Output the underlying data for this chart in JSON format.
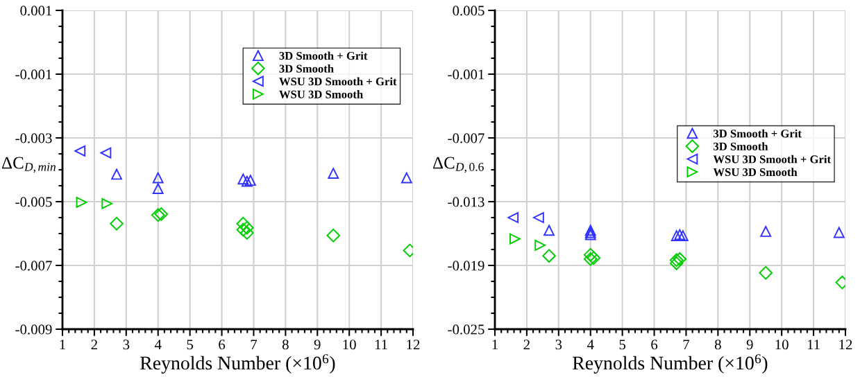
{
  "chart_data": [
    {
      "type": "scatter",
      "xlabel": "Reynolds Number (×10$^{6}$)",
      "ylabel": "ΔC$_{D,min}$",
      "xlim": [
        1,
        12
      ],
      "xticks": [
        1,
        2,
        3,
        4,
        5,
        6,
        7,
        8,
        9,
        10,
        11,
        12
      ],
      "ylim": [
        -0.009,
        0.001
      ],
      "yticks": [
        -0.009,
        -0.007,
        -0.005,
        -0.003,
        -0.001,
        0.001
      ],
      "grid": true,
      "legend": "top right",
      "series": [
        {
          "name": "3D Smooth + Grit",
          "color": "#3333ff",
          "marker": "triangle",
          "x": [
            2.7,
            4.0,
            4.0,
            6.67,
            6.79,
            6.9,
            9.5,
            11.8
          ],
          "values": [
            -0.00414,
            -0.00425,
            -0.00459,
            -0.00429,
            -0.00436,
            -0.00433,
            -0.00411,
            -0.00425
          ]
        },
        {
          "name": "3D Smooth",
          "color": "#00cc00",
          "marker": "diamond",
          "x": [
            2.7,
            4.0,
            4.1,
            6.67,
            6.67,
            6.79,
            6.79,
            9.5,
            11.9
          ],
          "values": [
            -0.00569,
            -0.00542,
            -0.00539,
            -0.00569,
            -0.00588,
            -0.00582,
            -0.00598,
            -0.00606,
            -0.00653
          ]
        },
        {
          "name": "WSU 3D Smooth + Grit",
          "color": "#3333ff",
          "marker": "triangle_left",
          "x": [
            1.55,
            2.36
          ],
          "values": [
            -0.00341,
            -0.00347
          ]
        },
        {
          "name": "WSU 3D Smooth",
          "color": "#00cc00",
          "marker": "triangle_right",
          "x": [
            1.6,
            2.4
          ],
          "values": [
            -0.00502,
            -0.00506
          ]
        }
      ]
    },
    {
      "type": "scatter",
      "xlabel": "Reynolds Number (×10$^{6}$)",
      "ylabel": "ΔC$_{D,0.6}$",
      "xlim": [
        1,
        12
      ],
      "xticks": [
        1,
        2,
        3,
        4,
        5,
        6,
        7,
        8,
        9,
        10,
        11,
        12
      ],
      "ylim": [
        -0.025,
        0.005
      ],
      "yticks": [
        -0.025,
        -0.019,
        -0.013,
        -0.007,
        -0.001,
        0.005
      ],
      "grid": true,
      "legend": "right",
      "series": [
        {
          "name": "3D Smooth + Grit",
          "color": "#3333ff",
          "marker": "triangle",
          "x": [
            2.7,
            4.0,
            4.0,
            4.0,
            6.7,
            6.8,
            6.9,
            9.5,
            11.8
          ],
          "values": [
            -0.0157,
            -0.0157,
            -0.0159,
            -0.0161,
            -0.0162,
            -0.0161,
            -0.0162,
            -0.0158,
            -0.0159
          ]
        },
        {
          "name": "3D Smooth",
          "color": "#00cc00",
          "marker": "diamond",
          "x": [
            2.7,
            4.0,
            4.0,
            4.1,
            6.7,
            6.7,
            6.8,
            9.5,
            11.9
          ],
          "values": [
            -0.0181,
            -0.018,
            -0.0184,
            -0.0183,
            -0.0185,
            -0.0188,
            -0.0184,
            -0.0197,
            -0.0206
          ]
        },
        {
          "name": "WSU 3D Smooth + Grit",
          "color": "#3333ff",
          "marker": "triangle_left",
          "x": [
            1.57,
            2.37
          ],
          "values": [
            -0.0145,
            -0.0145
          ]
        },
        {
          "name": "WSU 3D Smooth",
          "color": "#00cc00",
          "marker": "triangle_right",
          "x": [
            1.63,
            2.42
          ],
          "values": [
            -0.0165,
            -0.0171
          ]
        }
      ]
    }
  ]
}
